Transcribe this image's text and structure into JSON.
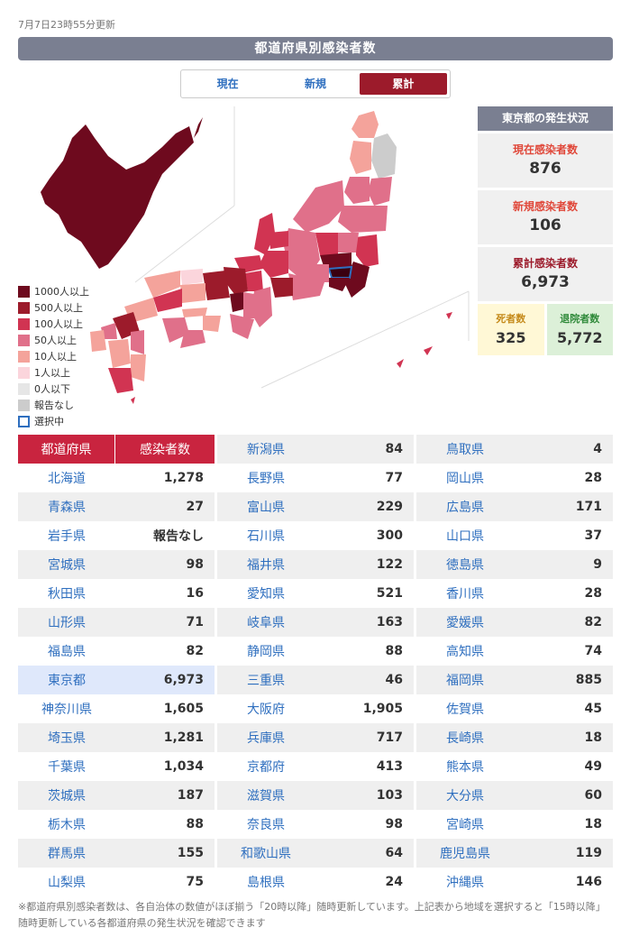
{
  "updated": "7月7日23時55分更新",
  "title": "都道府県別感染者数",
  "tabs": [
    {
      "label": "現在",
      "active": false
    },
    {
      "label": "新規",
      "active": false
    },
    {
      "label": "累計",
      "active": true
    }
  ],
  "legend": [
    {
      "label": "1000人以上",
      "color": "#6e0a1e"
    },
    {
      "label": "500人以上",
      "color": "#9c1b2b"
    },
    {
      "label": "100人以上",
      "color": "#d13452"
    },
    {
      "label": "50人以上",
      "color": "#e0708a"
    },
    {
      "label": "10人以上",
      "color": "#f4a39b"
    },
    {
      "label": "1人以上",
      "color": "#fbd5dc"
    },
    {
      "label": "0人以下",
      "color": "#e6e6e6"
    },
    {
      "label": "報告なし",
      "color": "#cccccc"
    },
    {
      "label": "選択中",
      "color": "#ffffff",
      "border": "#2f6fbf"
    }
  ],
  "tokyo": {
    "header": "東京都の発生状況",
    "current": {
      "label": "現在感染者数",
      "value": "876",
      "color": "#e0483a"
    },
    "new": {
      "label": "新規感染者数",
      "value": "106",
      "color": "#e0483a"
    },
    "total": {
      "label": "累計感染者数",
      "value": "6,973",
      "color": "#9c1b2b"
    },
    "deaths": {
      "label": "死者数",
      "value": "325",
      "color": "#c58a1a",
      "bg": "#fff8d6"
    },
    "recovered": {
      "label": "退院者数",
      "value": "5,772",
      "color": "#2f8a3a",
      "bg": "#dcf0d8"
    }
  },
  "table": {
    "header": {
      "pref": "都道府県",
      "count": "感染者数"
    },
    "rows": [
      [
        {
          "pref": "",
          "count": ""
        },
        {
          "pref": "新潟県",
          "count": "84"
        },
        {
          "pref": "鳥取県",
          "count": "4"
        }
      ],
      [
        {
          "pref": "北海道",
          "count": "1,278"
        },
        {
          "pref": "長野県",
          "count": "77"
        },
        {
          "pref": "岡山県",
          "count": "28"
        }
      ],
      [
        {
          "pref": "青森県",
          "count": "27"
        },
        {
          "pref": "富山県",
          "count": "229"
        },
        {
          "pref": "広島県",
          "count": "171"
        }
      ],
      [
        {
          "pref": "岩手県",
          "count": "報告なし"
        },
        {
          "pref": "石川県",
          "count": "300"
        },
        {
          "pref": "山口県",
          "count": "37"
        }
      ],
      [
        {
          "pref": "宮城県",
          "count": "98"
        },
        {
          "pref": "福井県",
          "count": "122"
        },
        {
          "pref": "徳島県",
          "count": "9"
        }
      ],
      [
        {
          "pref": "秋田県",
          "count": "16"
        },
        {
          "pref": "愛知県",
          "count": "521"
        },
        {
          "pref": "香川県",
          "count": "28"
        }
      ],
      [
        {
          "pref": "山形県",
          "count": "71"
        },
        {
          "pref": "岐阜県",
          "count": "163"
        },
        {
          "pref": "愛媛県",
          "count": "82"
        }
      ],
      [
        {
          "pref": "福島県",
          "count": "82"
        },
        {
          "pref": "静岡県",
          "count": "88"
        },
        {
          "pref": "高知県",
          "count": "74"
        }
      ],
      [
        {
          "pref": "東京都",
          "count": "6,973"
        },
        {
          "pref": "三重県",
          "count": "46"
        },
        {
          "pref": "福岡県",
          "count": "885"
        }
      ],
      [
        {
          "pref": "神奈川県",
          "count": "1,605"
        },
        {
          "pref": "大阪府",
          "count": "1,905"
        },
        {
          "pref": "佐賀県",
          "count": "45"
        }
      ],
      [
        {
          "pref": "埼玉県",
          "count": "1,281"
        },
        {
          "pref": "兵庫県",
          "count": "717"
        },
        {
          "pref": "長崎県",
          "count": "18"
        }
      ],
      [
        {
          "pref": "千葉県",
          "count": "1,034"
        },
        {
          "pref": "京都府",
          "count": "413"
        },
        {
          "pref": "熊本県",
          "count": "49"
        }
      ],
      [
        {
          "pref": "茨城県",
          "count": "187"
        },
        {
          "pref": "滋賀県",
          "count": "103"
        },
        {
          "pref": "大分県",
          "count": "60"
        }
      ],
      [
        {
          "pref": "栃木県",
          "count": "88"
        },
        {
          "pref": "奈良県",
          "count": "98"
        },
        {
          "pref": "宮崎県",
          "count": "18"
        }
      ],
      [
        {
          "pref": "群馬県",
          "count": "155"
        },
        {
          "pref": "和歌山県",
          "count": "64"
        },
        {
          "pref": "鹿児島県",
          "count": "119"
        }
      ],
      [
        {
          "pref": "山梨県",
          "count": "75"
        },
        {
          "pref": "島根県",
          "count": "24"
        },
        {
          "pref": "沖縄県",
          "count": "146"
        }
      ]
    ]
  },
  "footnote": "※都道府県別感染者数は、各自治体の数値がほぼ揃う「20時以降」随時更新しています。上記表から地域を選択すると「15時以降」随時更新している各都道府県の発生状況を確認できます"
}
